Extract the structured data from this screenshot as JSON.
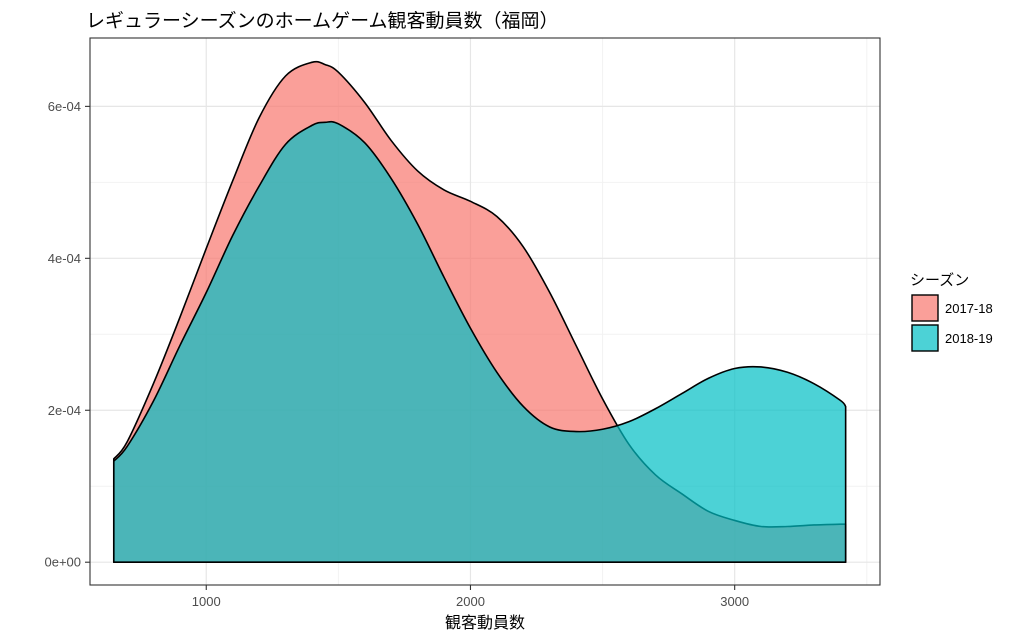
{
  "chart_data": {
    "type": "area",
    "title": "レギュラーシーズンのホームゲーム観客動員数（福岡）",
    "xlabel": "観客動員数",
    "ylabel": "",
    "xlim": [
      560,
      3550
    ],
    "ylim": [
      -3e-05,
      0.00069
    ],
    "x_ticks": [
      1000,
      2000,
      3000
    ],
    "x_tick_labels": [
      "1000",
      "2000",
      "3000"
    ],
    "y_ticks": [
      0,
      0.0002,
      0.0004,
      0.0006
    ],
    "y_tick_labels": [
      "0e+00",
      "2e-04",
      "4e-04",
      "6e-04"
    ],
    "grid": true,
    "legend": {
      "title": "シーズン",
      "position": "right"
    },
    "series": [
      {
        "name": "2017-18",
        "color": "#F8766D",
        "x": [
          650,
          700,
          800,
          900,
          1000,
          1100,
          1200,
          1300,
          1400,
          1450,
          1500,
          1600,
          1700,
          1800,
          1900,
          2000,
          2100,
          2200,
          2300,
          2400,
          2500,
          2600,
          2700,
          2800,
          2900,
          3000,
          3100,
          3200,
          3300,
          3400,
          3420
        ],
        "y": [
          0.000136,
          0.000158,
          0.000235,
          0.000322,
          0.000413,
          0.000502,
          0.000585,
          0.00064,
          0.000658,
          0.000655,
          0.000645,
          0.000605,
          0.000555,
          0.000515,
          0.00049,
          0.000475,
          0.000455,
          0.000415,
          0.000355,
          0.000285,
          0.000215,
          0.000155,
          0.000115,
          9e-05,
          6.7e-05,
          5.5e-05,
          4.7e-05,
          4.7e-05,
          4.9e-05,
          5e-05,
          5e-05
        ]
      },
      {
        "name": "2018-19",
        "color": "#00BFC4",
        "x": [
          650,
          700,
          800,
          900,
          1000,
          1100,
          1200,
          1300,
          1400,
          1450,
          1500,
          1600,
          1700,
          1800,
          1900,
          2000,
          2100,
          2200,
          2300,
          2400,
          2500,
          2600,
          2700,
          2800,
          2900,
          3000,
          3100,
          3200,
          3300,
          3400,
          3420
        ],
        "y": [
          0.000133,
          0.000152,
          0.000212,
          0.000285,
          0.000355,
          0.00043,
          0.000495,
          0.00055,
          0.000575,
          0.000579,
          0.000577,
          0.000552,
          0.000505,
          0.000445,
          0.000375,
          0.000308,
          0.00025,
          0.000205,
          0.000178,
          0.000172,
          0.000175,
          0.000185,
          0.000202,
          0.000222,
          0.000242,
          0.000255,
          0.000257,
          0.00025,
          0.000235,
          0.000213,
          0.000205
        ]
      }
    ]
  }
}
